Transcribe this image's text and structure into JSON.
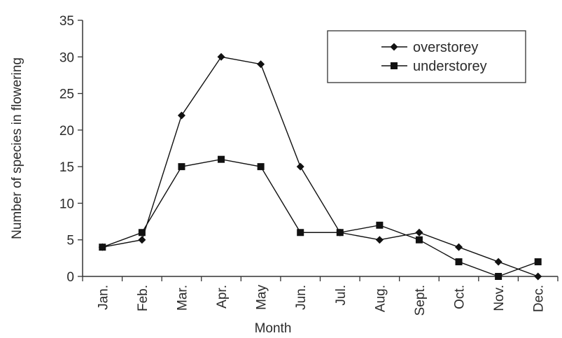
{
  "chart_data": {
    "type": "line",
    "xlabel": "Month",
    "ylabel": "Number of species in flowering",
    "ylim": [
      0,
      35
    ],
    "yticks": [
      0,
      5,
      10,
      15,
      20,
      25,
      30,
      35
    ],
    "grid": false,
    "legend_position": "top-right",
    "categories": [
      "Jan.",
      "Feb.",
      "Mar.",
      "Apr.",
      "May",
      "Jun.",
      "Jul.",
      "Aug.",
      "Sept.",
      "Oct.",
      "Nov.",
      "Dec."
    ],
    "series": [
      {
        "name": "overstorey",
        "marker": "diamond",
        "values": [
          4,
          5,
          22,
          30,
          29,
          15,
          6,
          5,
          6,
          4,
          2,
          0
        ]
      },
      {
        "name": "understorey",
        "marker": "square",
        "values": [
          4,
          6,
          15,
          16,
          15,
          6,
          6,
          7,
          5,
          2,
          0,
          2
        ]
      }
    ],
    "colors": {
      "line": "#111111",
      "axis": "#333333",
      "text": "#2b2b2b"
    }
  }
}
